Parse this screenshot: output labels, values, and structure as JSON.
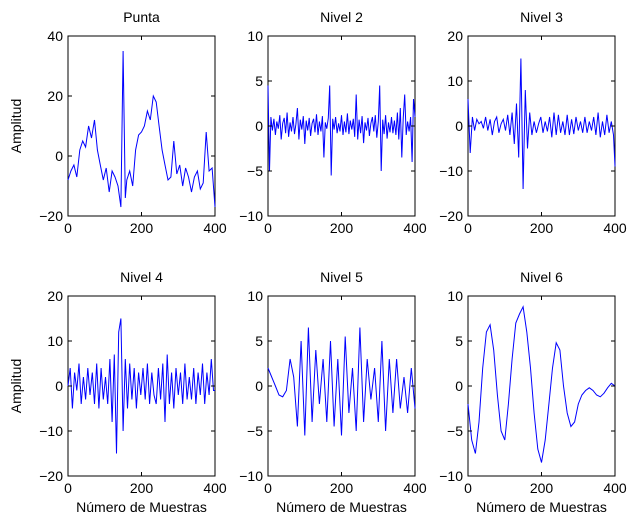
{
  "figure": {
    "background": "#ffffff",
    "line_color": "#0000ff"
  },
  "chart_data": [
    {
      "type": "line",
      "title": "Punta",
      "xlabel": "",
      "ylabel": "Amplitud",
      "xlim": [
        0,
        400
      ],
      "ylim": [
        -20,
        40
      ],
      "xticks": [
        "0",
        "200",
        "400"
      ],
      "yticks": [
        "−20",
        "0",
        "20",
        "40"
      ],
      "series": [
        {
          "color": "#0000ff",
          "x": [
            0,
            8,
            16,
            24,
            32,
            40,
            48,
            56,
            64,
            72,
            80,
            88,
            96,
            104,
            112,
            120,
            128,
            136,
            144,
            150,
            156,
            160,
            168,
            176,
            184,
            192,
            200,
            208,
            216,
            224,
            232,
            240,
            248,
            256,
            264,
            272,
            280,
            288,
            296,
            304,
            312,
            320,
            328,
            336,
            344,
            352,
            360,
            368,
            376,
            384,
            392,
            400
          ],
          "y": [
            -8,
            -5,
            -3,
            -7,
            2,
            5,
            3,
            10,
            6,
            12,
            2,
            -3,
            -8,
            -4,
            -12,
            -5,
            -7,
            -10,
            -17,
            35,
            -14,
            -8,
            -5,
            -10,
            2,
            7,
            8,
            10,
            15,
            12,
            20,
            18,
            10,
            2,
            -3,
            -8,
            -7,
            5,
            -6,
            -3,
            -10,
            -4,
            -7,
            -12,
            -7,
            -5,
            -11,
            -9,
            8,
            -5,
            -4,
            -17
          ]
        }
      ]
    },
    {
      "type": "line",
      "title": "Nivel 2",
      "xlabel": "",
      "ylabel": "",
      "xlim": [
        0,
        400
      ],
      "ylim": [
        -10,
        10
      ],
      "xticks": [
        "0",
        "200",
        "400"
      ],
      "yticks": [
        "−10",
        "−5",
        "0",
        "5",
        "10"
      ],
      "series": [
        {
          "color": "#0000ff",
          "x": [
            0,
            4,
            8,
            12,
            16,
            20,
            24,
            28,
            32,
            36,
            40,
            44,
            48,
            52,
            56,
            60,
            64,
            68,
            72,
            76,
            80,
            84,
            88,
            92,
            96,
            100,
            104,
            108,
            112,
            116,
            120,
            124,
            128,
            132,
            136,
            140,
            144,
            148,
            152,
            156,
            160,
            164,
            168,
            172,
            176,
            180,
            184,
            188,
            192,
            196,
            200,
            204,
            208,
            212,
            216,
            220,
            224,
            228,
            232,
            236,
            240,
            244,
            248,
            252,
            256,
            260,
            264,
            268,
            272,
            276,
            280,
            284,
            288,
            292,
            296,
            300,
            304,
            308,
            312,
            316,
            320,
            324,
            328,
            332,
            336,
            340,
            344,
            348,
            352,
            356,
            360,
            364,
            368,
            372,
            376,
            380,
            384,
            388,
            392,
            396,
            400
          ],
          "y": [
            4.5,
            -5,
            1,
            -0.5,
            0.8,
            -1,
            0.5,
            -0.3,
            1.2,
            -1.5,
            0.3,
            0.9,
            -0.8,
            1.5,
            -1.2,
            0.4,
            -0.6,
            1.0,
            -0.9,
            0.2,
            2,
            -1.5,
            0.7,
            -0.4,
            1.1,
            -2,
            0.6,
            -0.5,
            0.9,
            -1.1,
            0.3,
            0.8,
            -0.7,
            1.3,
            -1.0,
            0.5,
            -0.6,
            1.1,
            -3.5,
            0.4,
            -0.3,
            0.9,
            4.5,
            -5.5,
            0.8,
            -0.4,
            1.0,
            -0.8,
            0.3,
            -0.6,
            1.2,
            -1.0,
            0.5,
            -0.7,
            1.4,
            -0.9,
            0.6,
            -0.4,
            0.8,
            -1.2,
            3.5,
            -1.5,
            0.7,
            -0.8,
            1.1,
            -1.9,
            0.4,
            -0.5,
            0.9,
            -1.1,
            0.3,
            1.0,
            -0.6,
            1.2,
            -1.3,
            0.5,
            4.5,
            -5,
            0.7,
            -0.9,
            1.2,
            -1.4,
            0.4,
            -0.7,
            1.0,
            -0.8,
            0.6,
            -1.0,
            1.5,
            -1.5,
            2.0,
            -3.5,
            0.8,
            3.5,
            -1.0,
            0.5,
            -0.6,
            1.0,
            -4,
            3,
            1
          ]
        }
      ]
    },
    {
      "type": "line",
      "title": "Nivel 3",
      "xlabel": "",
      "ylabel": "",
      "xlim": [
        0,
        400
      ],
      "ylim": [
        -20,
        20
      ],
      "xticks": [
        "0",
        "200",
        "400"
      ],
      "yticks": [
        "−20",
        "−10",
        "0",
        "10",
        "20"
      ],
      "series": [
        {
          "color": "#0000ff",
          "x": [
            0,
            6,
            12,
            18,
            24,
            30,
            36,
            42,
            48,
            54,
            60,
            66,
            72,
            78,
            84,
            90,
            96,
            102,
            108,
            114,
            120,
            126,
            132,
            138,
            144,
            150,
            156,
            162,
            168,
            174,
            180,
            186,
            192,
            198,
            204,
            210,
            216,
            222,
            228,
            234,
            240,
            246,
            252,
            258,
            264,
            270,
            276,
            282,
            288,
            294,
            300,
            306,
            312,
            318,
            324,
            330,
            336,
            342,
            348,
            354,
            360,
            366,
            372,
            378,
            384,
            390,
            396,
            400
          ],
          "y": [
            6,
            -6,
            2,
            -1,
            1.5,
            0.5,
            1,
            -0.5,
            2,
            -1,
            1.5,
            -2,
            1,
            2,
            -1.5,
            0.5,
            1.5,
            -1,
            2.5,
            -2,
            3,
            -4,
            5,
            -7,
            15,
            -14,
            8,
            -5,
            3,
            -2,
            1,
            -1.5,
            0.5,
            2,
            -1.5,
            1,
            -1.2,
            2,
            -2.5,
            3,
            -2,
            2.5,
            -1.5,
            1,
            -2,
            2.5,
            -2,
            1.5,
            -1.8,
            2,
            -1,
            1,
            -1.5,
            2,
            -1.5,
            1,
            -1,
            2,
            -2,
            3,
            -2.5,
            1,
            -2,
            2.5,
            -1.5,
            1,
            -2,
            -9
          ]
        }
      ]
    },
    {
      "type": "line",
      "title": "Nivel 4",
      "xlabel": "Número de Muestras",
      "ylabel": "Amplitud",
      "xlim": [
        0,
        400
      ],
      "ylim": [
        -20,
        20
      ],
      "xticks": [
        "0",
        "200",
        "400"
      ],
      "yticks": [
        "−20",
        "−10",
        "0",
        "10",
        "20"
      ],
      "series": [
        {
          "color": "#0000ff",
          "x": [
            0,
            6,
            12,
            18,
            24,
            30,
            36,
            42,
            48,
            54,
            60,
            66,
            72,
            78,
            84,
            90,
            96,
            102,
            108,
            114,
            120,
            126,
            132,
            138,
            144,
            150,
            156,
            162,
            168,
            174,
            180,
            186,
            192,
            198,
            204,
            210,
            216,
            222,
            228,
            234,
            240,
            246,
            252,
            258,
            264,
            270,
            276,
            282,
            288,
            294,
            300,
            306,
            312,
            318,
            324,
            330,
            336,
            342,
            348,
            354,
            360,
            366,
            372,
            378,
            384,
            390,
            396,
            400
          ],
          "y": [
            0,
            4,
            -5,
            3,
            -1,
            5,
            -4,
            2,
            -3,
            4,
            -2,
            3,
            -4,
            5,
            -5,
            4,
            -3,
            2,
            -4,
            6,
            -8,
            7,
            -15,
            12,
            15,
            -10,
            6,
            -5,
            5,
            -3,
            4,
            -5,
            3,
            -2,
            4,
            -3,
            5,
            -4,
            3,
            -2,
            -4,
            4,
            -3,
            5,
            -8,
            7,
            -4,
            3,
            -5,
            4,
            -2,
            3,
            -4,
            5,
            -3,
            2,
            -3,
            4,
            -4,
            3,
            -2,
            5,
            -4,
            3,
            -2,
            6,
            -1,
            -1
          ]
        }
      ]
    },
    {
      "type": "line",
      "title": "Nivel 5",
      "xlabel": "Número de Muestras",
      "ylabel": "",
      "xlim": [
        0,
        400
      ],
      "ylim": [
        -10,
        10
      ],
      "xticks": [
        "0",
        "200",
        "400"
      ],
      "yticks": [
        "−10",
        "−5",
        "0",
        "5",
        "10"
      ],
      "series": [
        {
          "color": "#0000ff",
          "x": [
            0,
            10,
            20,
            30,
            40,
            50,
            60,
            70,
            80,
            90,
            100,
            110,
            120,
            130,
            140,
            150,
            160,
            170,
            180,
            190,
            200,
            210,
            220,
            230,
            240,
            250,
            260,
            270,
            280,
            290,
            300,
            310,
            320,
            330,
            340,
            350,
            360,
            370,
            380,
            390,
            400
          ],
          "y": [
            2,
            1,
            0,
            -1,
            -1.2,
            -0.5,
            3,
            1,
            -4.5,
            5,
            -5.5,
            6.5,
            -4,
            4,
            -2,
            3,
            -4,
            5,
            -4.5,
            3,
            -5.5,
            5.5,
            -3,
            2,
            -5,
            6.5,
            -4,
            3,
            -1.5,
            2,
            -4,
            5,
            -5,
            3,
            -3,
            3,
            -2.5,
            1,
            -3,
            2,
            -2.5
          ]
        }
      ]
    },
    {
      "type": "line",
      "title": "Nivel 6",
      "xlabel": "Número de Muestras",
      "ylabel": "",
      "xlim": [
        0,
        400
      ],
      "ylim": [
        -10,
        10
      ],
      "xticks": [
        "0",
        "200",
        "400"
      ],
      "yticks": [
        "−10",
        "−5",
        "0",
        "5",
        "10"
      ],
      "series": [
        {
          "color": "#0000ff",
          "x": [
            0,
            10,
            20,
            30,
            40,
            50,
            60,
            70,
            80,
            90,
            100,
            110,
            120,
            130,
            140,
            150,
            160,
            170,
            180,
            190,
            200,
            210,
            220,
            230,
            240,
            250,
            260,
            270,
            280,
            290,
            300,
            310,
            320,
            330,
            340,
            350,
            360,
            370,
            380,
            390,
            400
          ],
          "y": [
            -2,
            -6,
            -7.5,
            -4,
            2,
            6,
            6.8,
            4,
            -1,
            -5,
            -6,
            -2,
            3,
            7,
            8,
            8.8,
            6,
            2,
            -3,
            -7,
            -8.5,
            -6,
            -2,
            2,
            4.8,
            4,
            0,
            -3,
            -4.5,
            -4,
            -2,
            -1,
            -0.5,
            -0.2,
            -0.5,
            -1,
            -1.2,
            -0.8,
            -0.2,
            0.3,
            0
          ]
        }
      ]
    }
  ]
}
